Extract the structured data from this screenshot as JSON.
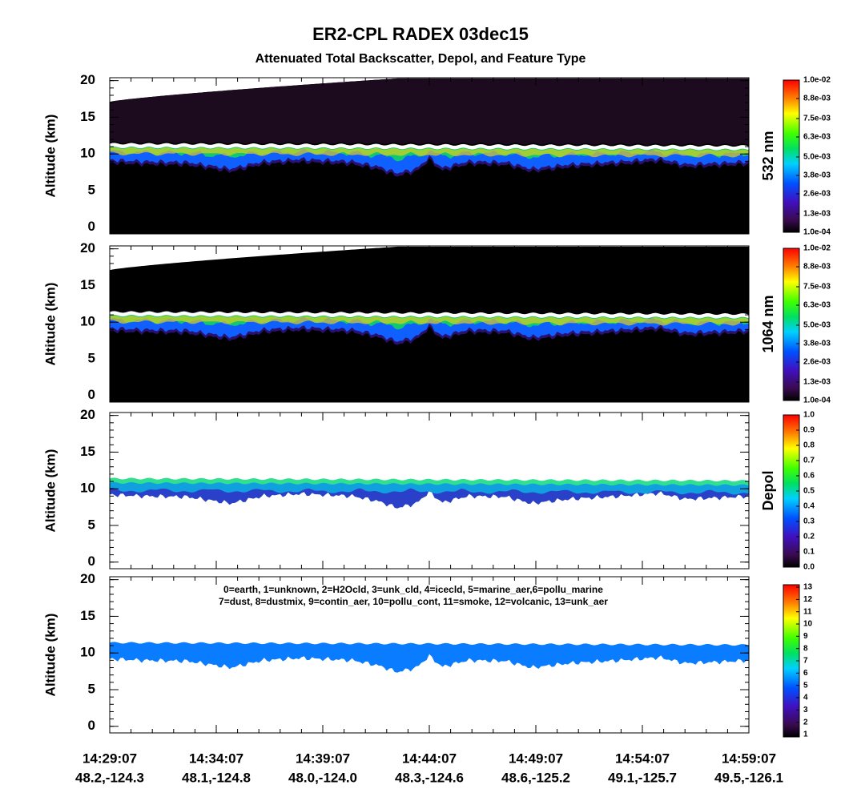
{
  "title": "ER2-CPL RADEX 03dec15",
  "subtitle": "Attenuated Total Backscatter, Depol, and Feature Type",
  "x_ticks": [
    {
      "time": "14:29:07",
      "location": "48.2,-124.3"
    },
    {
      "time": "14:34:07",
      "location": "48.1,-124.8"
    },
    {
      "time": "14:39:07",
      "location": "48.0,-124.0"
    },
    {
      "time": "14:44:07",
      "location": "48.3,-124.6"
    },
    {
      "time": "14:49:07",
      "location": "48.6,-125.2"
    },
    {
      "time": "14:54:07",
      "location": "49.1,-125.7"
    },
    {
      "time": "14:59:07",
      "location": "49.5,-126.1"
    }
  ],
  "chart_data": [
    {
      "type": "heatmap",
      "ylabel": "Altitude (km)",
      "ylim": [
        -0.9,
        20.4
      ],
      "yticks": [
        0,
        5,
        10,
        15,
        20
      ],
      "colorbar": {
        "label": "532 nm",
        "clim": [
          0.0001,
          0.01
        ],
        "ticks": [
          {
            "value": 0.0001,
            "label": "1.0e-04"
          },
          {
            "value": 0.0013,
            "label": "1.3e-03"
          },
          {
            "value": 0.0026,
            "label": "2.6e-03"
          },
          {
            "value": 0.0038,
            "label": "3.8e-03"
          },
          {
            "value": 0.005,
            "label": "5.0e-03"
          },
          {
            "value": 0.0063,
            "label": "6.3e-03"
          },
          {
            "value": 0.0075,
            "label": "7.5e-03"
          },
          {
            "value": 0.0088,
            "label": "8.8e-03"
          },
          {
            "value": 0.01,
            "label": "1.0e-02"
          }
        ]
      }
    },
    {
      "type": "heatmap",
      "ylabel": "Altitude (km)",
      "ylim": [
        -0.9,
        20.4
      ],
      "yticks": [
        0,
        5,
        10,
        15,
        20
      ],
      "colorbar": {
        "label": "1064 nm",
        "clim": [
          0.0001,
          0.01
        ],
        "ticks": [
          {
            "value": 0.0001,
            "label": "1.0e-04"
          },
          {
            "value": 0.0013,
            "label": "1.3e-03"
          },
          {
            "value": 0.0026,
            "label": "2.6e-03"
          },
          {
            "value": 0.0038,
            "label": "3.8e-03"
          },
          {
            "value": 0.005,
            "label": "5.0e-03"
          },
          {
            "value": 0.0063,
            "label": "6.3e-03"
          },
          {
            "value": 0.0075,
            "label": "7.5e-03"
          },
          {
            "value": 0.0088,
            "label": "8.8e-03"
          },
          {
            "value": 0.01,
            "label": "1.0e-02"
          }
        ]
      }
    },
    {
      "type": "heatmap",
      "ylabel": "Altitude (km)",
      "ylim": [
        -0.9,
        20.4
      ],
      "yticks": [
        0,
        5,
        10,
        15,
        20
      ],
      "colorbar": {
        "label": "Depol",
        "clim": [
          0,
          1
        ],
        "ticks": [
          {
            "value": 0,
            "label": "0.0"
          },
          0.1,
          0.2,
          0.3,
          0.4,
          0.5,
          0.6,
          0.7,
          0.8,
          0.9,
          {
            "value": 1,
            "label": "1.0"
          }
        ]
      }
    },
    {
      "type": "heatmap",
      "ylabel": "Altitude (km)",
      "ylim": [
        -0.9,
        20.4
      ],
      "yticks": [
        0,
        5,
        10,
        15,
        20
      ],
      "annotation": [
        "0=earth, 1=unknown, 2=H2Ocld, 3=unk_cld, 4=icecld, 5=marine_aer,6=pollu_marine",
        "7=dust, 8=dustmix, 9=contin_aer, 10=pollu_cont, 11=smoke, 12=volcanic, 13=unk_aer"
      ],
      "colorbar": {
        "clim": [
          0.8,
          13.2
        ],
        "ticks": [
          1,
          2,
          3,
          4,
          5,
          6,
          7,
          8,
          9,
          10,
          11,
          12,
          13
        ]
      }
    }
  ]
}
